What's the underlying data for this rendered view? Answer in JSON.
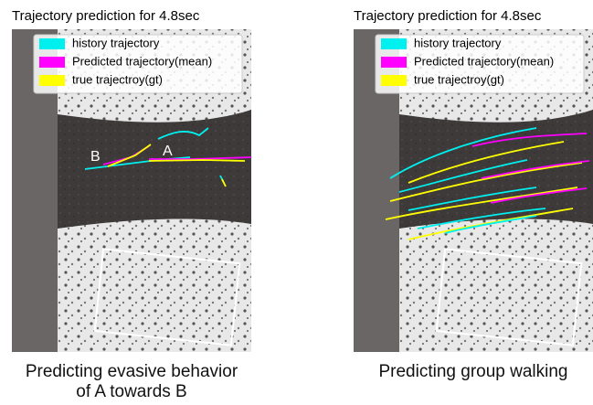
{
  "panels": [
    {
      "title": "Trajectory prediction for 4.8sec",
      "legend": [
        {
          "label": "history trajectory",
          "color": "#00f0f0"
        },
        {
          "label": "Predicted trajectory(mean)",
          "color": "#ff00ff"
        },
        {
          "label": "true trajectroy(gt)",
          "color": "#ffff00"
        }
      ],
      "annotations": [
        "A",
        "B"
      ],
      "caption": [
        "Predicting evasive behavior",
        "of A towards B"
      ]
    },
    {
      "title": "Trajectory prediction for 4.8sec",
      "legend": [
        {
          "label": "history trajectory",
          "color": "#00f0f0"
        },
        {
          "label": "Predicted trajectory(mean)",
          "color": "#ff00ff"
        },
        {
          "label": "true trajectroy(gt)",
          "color": "#ffff00"
        }
      ],
      "annotations": [],
      "caption": [
        "Predicting group walking"
      ]
    }
  ]
}
